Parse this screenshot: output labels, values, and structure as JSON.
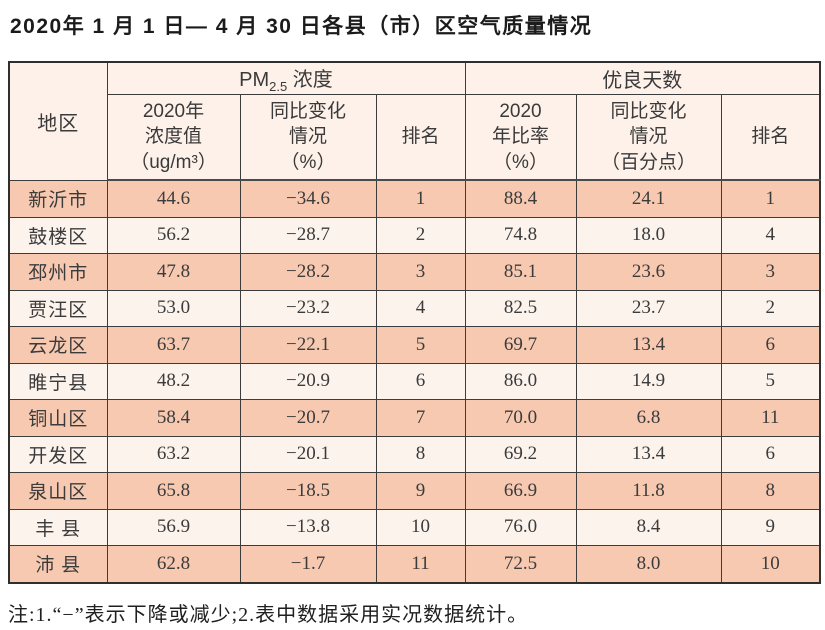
{
  "title": "2020年 1 月 1 日— 4 月 30 日各县（市）区空气质量情况",
  "table": {
    "region_header": "地区",
    "pm_group": {
      "prefix": "PM",
      "sub": "2.5",
      "suffix": " 浓度"
    },
    "good_days_group": "优良天数",
    "sub_headers": {
      "pm_value": "2020年\n浓度值\n（ug/m³）",
      "pm_change": "同比变化\n情况\n（%）",
      "pm_rank": "排名",
      "gd_ratio": "2020\n年比率\n（%）",
      "gd_change": "同比变化\n情况\n（百分点）",
      "gd_rank": "排名"
    },
    "rows": [
      {
        "region": "新沂市",
        "pm_value": "44.6",
        "pm_change": "−34.6",
        "pm_rank": "1",
        "gd_ratio": "88.4",
        "gd_change": "24.1",
        "gd_rank": "1"
      },
      {
        "region": "鼓楼区",
        "pm_value": "56.2",
        "pm_change": "−28.7",
        "pm_rank": "2",
        "gd_ratio": "74.8",
        "gd_change": "18.0",
        "gd_rank": "4"
      },
      {
        "region": "邳州市",
        "pm_value": "47.8",
        "pm_change": "−28.2",
        "pm_rank": "3",
        "gd_ratio": "85.1",
        "gd_change": "23.6",
        "gd_rank": "3"
      },
      {
        "region": "贾汪区",
        "pm_value": "53.0",
        "pm_change": "−23.2",
        "pm_rank": "4",
        "gd_ratio": "82.5",
        "gd_change": "23.7",
        "gd_rank": "2"
      },
      {
        "region": "云龙区",
        "pm_value": "63.7",
        "pm_change": "−22.1",
        "pm_rank": "5",
        "gd_ratio": "69.7",
        "gd_change": "13.4",
        "gd_rank": "6"
      },
      {
        "region": "睢宁县",
        "pm_value": "48.2",
        "pm_change": "−20.9",
        "pm_rank": "6",
        "gd_ratio": "86.0",
        "gd_change": "14.9",
        "gd_rank": "5"
      },
      {
        "region": "铜山区",
        "pm_value": "58.4",
        "pm_change": "−20.7",
        "pm_rank": "7",
        "gd_ratio": "70.0",
        "gd_change": "6.8",
        "gd_rank": "11"
      },
      {
        "region": "开发区",
        "pm_value": "63.2",
        "pm_change": "−20.1",
        "pm_rank": "8",
        "gd_ratio": "69.2",
        "gd_change": "13.4",
        "gd_rank": "6"
      },
      {
        "region": "泉山区",
        "pm_value": "65.8",
        "pm_change": "−18.5",
        "pm_rank": "9",
        "gd_ratio": "66.9",
        "gd_change": "11.8",
        "gd_rank": "8"
      },
      {
        "region": "丰 县",
        "pm_value": "56.9",
        "pm_change": "−13.8",
        "pm_rank": "10",
        "gd_ratio": "76.0",
        "gd_change": "8.4",
        "gd_rank": "9"
      },
      {
        "region": "沛 县",
        "pm_value": "62.8",
        "pm_change": "−1.7",
        "pm_rank": "11",
        "gd_ratio": "72.5",
        "gd_change": "8.0",
        "gd_rank": "10"
      }
    ]
  },
  "footnote": "注:1.“−”表示下降或减少;2.表中数据采用实况数据统计。",
  "colors": {
    "row_odd": "#f7c9b1",
    "row_even": "#fcf3ed",
    "header_bg": "#fdf1e9",
    "border": "#3c3c3c"
  }
}
